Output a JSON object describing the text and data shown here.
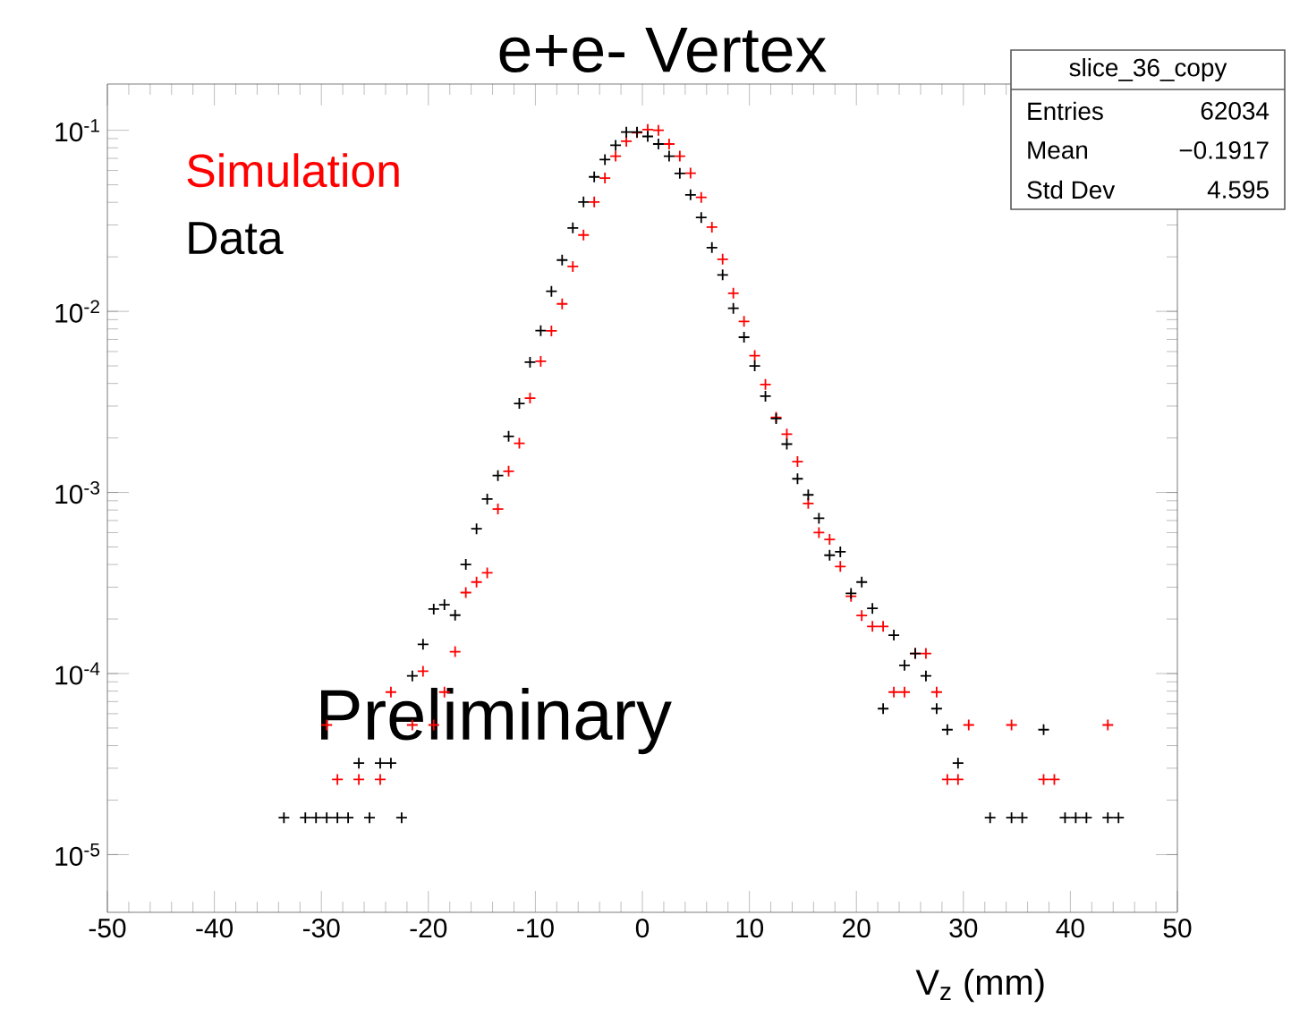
{
  "chart_data": {
    "type": "scatter",
    "title": "e+e- Vertex",
    "xlabel": "V$_{z}$ (mm)",
    "xlim": [
      -50,
      50
    ],
    "xticks": [
      -50,
      -40,
      -30,
      -20,
      -10,
      0,
      10,
      20,
      30,
      40,
      50
    ],
    "ylim": [
      4.8e-06,
      0.18
    ],
    "log": "y",
    "yticks": [
      {
        "value": 1e-05,
        "label": "10$^{-5}$"
      },
      {
        "value": 0.0001,
        "label": "10$^{-4}$"
      },
      {
        "value": 0.001,
        "label": "10$^{-3}$"
      },
      {
        "value": 0.01,
        "label": "10$^{-2}$"
      },
      {
        "value": 0.1,
        "label": "10$^{-1}$"
      }
    ],
    "grid": false,
    "legend": "top left",
    "marker": "cross",
    "series": [
      {
        "name": "Simulation",
        "color": "#ff0000",
        "x": [
          -29.5,
          -28.5,
          -26.5,
          -24.5,
          -23.5,
          -21.5,
          -20.5,
          -19.5,
          -18.5,
          -17.5,
          -16.5,
          -15.5,
          -14.5,
          -13.5,
          -12.5,
          -11.5,
          -10.5,
          -9.5,
          -8.5,
          -7.5,
          -6.5,
          -5.5,
          -4.5,
          -3.5,
          -2.5,
          -1.5,
          -0.5,
          0.5,
          1.5,
          2.5,
          3.5,
          4.5,
          5.5,
          6.5,
          7.5,
          8.5,
          9.5,
          10.5,
          11.5,
          12.5,
          13.5,
          14.5,
          15.5,
          16.5,
          17.5,
          18.5,
          19.5,
          20.5,
          21.5,
          22.5,
          23.5,
          24.5,
          25.5,
          26.5,
          27.5,
          28.5,
          29.5,
          30.5,
          34.5,
          37.5,
          38.5,
          43.5
        ],
        "values": [
          5.2e-05,
          2.6e-05,
          2.6e-05,
          2.6e-05,
          7.9e-05,
          5.2e-05,
          0.000103,
          5.2e-05,
          7.9e-05,
          0.000132,
          0.00028,
          0.00032,
          0.00036,
          0.00081,
          0.00131,
          0.00187,
          0.00332,
          0.0053,
          0.0078,
          0.011,
          0.0177,
          0.0264,
          0.0402,
          0.0545,
          0.072,
          0.087,
          0.097,
          0.101,
          0.1,
          0.084,
          0.072,
          0.058,
          0.0426,
          0.0292,
          0.0194,
          0.0126,
          0.0088,
          0.0057,
          0.00395,
          0.0026,
          0.0021,
          0.00148,
          0.00087,
          0.0006,
          0.00055,
          0.00039,
          0.000267,
          0.000209,
          0.000182,
          0.000182,
          7.9e-05,
          7.9e-05,
          0.000129,
          0.000129,
          7.9e-05,
          2.6e-05,
          2.6e-05,
          5.2e-05,
          5.2e-05,
          2.6e-05,
          2.6e-05,
          5.2e-05
        ]
      },
      {
        "name": "Data",
        "color": "#000000",
        "x": [
          -33.5,
          -31.5,
          -30.5,
          -29.5,
          -28.5,
          -27.5,
          -26.5,
          -25.5,
          -24.5,
          -23.5,
          -22.5,
          -21.5,
          -20.5,
          -19.5,
          -18.5,
          -17.5,
          -16.5,
          -15.5,
          -14.5,
          -13.5,
          -12.5,
          -11.5,
          -10.5,
          -9.5,
          -8.5,
          -7.5,
          -6.5,
          -5.5,
          -4.5,
          -3.5,
          -2.5,
          -1.5,
          -0.5,
          0.5,
          1.5,
          2.5,
          3.5,
          4.5,
          5.5,
          6.5,
          7.5,
          8.5,
          9.5,
          10.5,
          11.5,
          12.5,
          13.5,
          14.5,
          15.5,
          16.5,
          17.5,
          18.5,
          19.5,
          20.5,
          21.5,
          22.5,
          23.5,
          24.5,
          25.5,
          26.5,
          27.5,
          28.5,
          29.5,
          32.5,
          34.5,
          35.5,
          37.5,
          39.5,
          40.5,
          41.5,
          43.5,
          44.5
        ],
        "values": [
          1.6e-05,
          1.6e-05,
          1.6e-05,
          1.6e-05,
          1.6e-05,
          1.6e-05,
          3.2e-05,
          1.6e-05,
          3.2e-05,
          3.2e-05,
          1.6e-05,
          9.7e-05,
          0.000145,
          0.000227,
          0.00024,
          0.00021,
          0.0004,
          0.00063,
          0.00092,
          0.00124,
          0.00204,
          0.0031,
          0.00524,
          0.00783,
          0.0129,
          0.0192,
          0.0289,
          0.0402,
          0.0553,
          0.0689,
          0.0826,
          0.0977,
          0.0977,
          0.0925,
          0.084,
          0.072,
          0.0578,
          0.044,
          0.033,
          0.0225,
          0.0159,
          0.0104,
          0.0072,
          0.005,
          0.0034,
          0.00256,
          0.00185,
          0.00119,
          0.00097,
          0.00072,
          0.00045,
          0.00047,
          0.000277,
          0.00032,
          0.000229,
          6.4e-05,
          0.000163,
          0.000111,
          0.000129,
          9.7e-05,
          6.4e-05,
          4.9e-05,
          3.2e-05,
          1.6e-05,
          1.6e-05,
          1.6e-05,
          4.9e-05,
          1.6e-05,
          1.6e-05,
          1.6e-05,
          1.6e-05,
          1.6e-05
        ]
      }
    ],
    "annotations": [
      "slice_36_copy",
      "Entries",
      "62034",
      "Mean",
      "−0.1917",
      "Std Dev",
      "4.595",
      "Preliminary"
    ]
  }
}
